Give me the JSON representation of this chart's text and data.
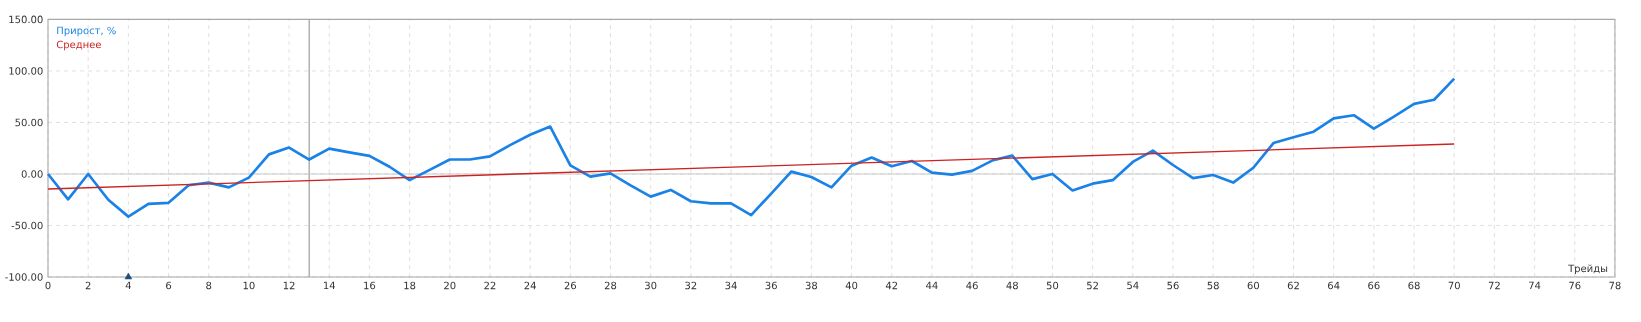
{
  "chart_data": {
    "type": "line",
    "xlabel": "Трейды",
    "x": [
      0,
      1,
      2,
      3,
      4,
      5,
      6,
      7,
      8,
      9,
      10,
      11,
      12,
      13,
      14,
      15,
      16,
      17,
      18,
      19,
      20,
      21,
      22,
      23,
      24,
      25,
      26,
      27,
      28,
      29,
      30,
      31,
      32,
      33,
      34,
      35,
      36,
      37,
      38,
      39,
      40,
      41,
      42,
      43,
      44,
      45,
      46,
      47,
      48,
      49,
      50,
      51,
      52,
      53,
      54,
      55,
      56,
      57,
      58,
      59,
      60,
      61,
      62,
      63,
      64,
      65,
      66,
      67,
      68,
      69,
      70
    ],
    "series": [
      {
        "name": "Прирост, %",
        "color": "#1a82e6",
        "values": [
          0,
          -24.6,
          0,
          -25,
          -41.4,
          -29,
          -28,
          -11,
          -8.4,
          -13,
          -3.6,
          19,
          25.6,
          14,
          24.6,
          21,
          17.5,
          7,
          -6,
          4,
          14,
          14,
          17,
          28,
          38,
          46,
          8.4,
          -2.6,
          0.6,
          -11,
          -22,
          -15.5,
          -26.5,
          -28.5,
          -28.5,
          -40,
          -19,
          2.3,
          -3,
          -13,
          8,
          16,
          7.4,
          12.6,
          1.3,
          -0.6,
          3,
          13,
          17.8,
          -5,
          0,
          -16,
          -9.4,
          -6,
          11.7,
          22.6,
          8.7,
          -4,
          -1,
          -8.4,
          6,
          30,
          35.6,
          41,
          54,
          57,
          44,
          55.7,
          68,
          72,
          92.6
        ]
      },
      {
        "name": "Среднее",
        "color": "#cc2222",
        "x": [
          0,
          70
        ],
        "values": [
          -14.6,
          29.1
        ]
      },
      {
        "type": "scatter",
        "marker": "triangle",
        "color": "#1f4e79",
        "x": [
          4
        ],
        "values": [
          -100
        ]
      }
    ],
    "xlim": [
      0,
      78
    ],
    "ylim": [
      -100,
      150
    ],
    "xticks": [
      0,
      2,
      4,
      6,
      8,
      10,
      12,
      14,
      16,
      18,
      20,
      22,
      24,
      26,
      28,
      30,
      32,
      34,
      36,
      38,
      40,
      42,
      44,
      46,
      48,
      50,
      52,
      54,
      56,
      58,
      60,
      62,
      64,
      66,
      68,
      70,
      72,
      74,
      76,
      78
    ],
    "yticks": [
      {
        "value": -100,
        "label": "-100.00"
      },
      {
        "value": -50,
        "label": "-50.00"
      },
      {
        "value": 0,
        "label": "0.00"
      },
      {
        "value": 50,
        "label": "50.00"
      },
      {
        "value": 100,
        "label": "100.00"
      },
      {
        "value": 150,
        "label": "150.00"
      }
    ],
    "grid": true,
    "legend": "top left",
    "line_style": "solid",
    "marker": "none",
    "ref_lines": [
      {
        "axis": "x",
        "value": 13,
        "color": "#909090"
      },
      {
        "axis": "y",
        "value": 0,
        "color": "#c8c8c8"
      }
    ]
  }
}
